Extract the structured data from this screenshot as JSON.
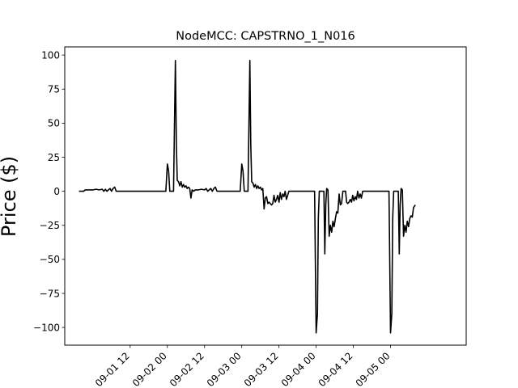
{
  "chart_data": {
    "type": "line",
    "title": "NodeMCC: CAPSTRNO_1_N016",
    "xlabel": "",
    "ylabel": "Price ($)",
    "ylim": [
      -113,
      106
    ],
    "xlim_hours": [
      -9.1,
      120.4
    ],
    "grid": false,
    "legend": "none",
    "line_color": "#000000",
    "x_ticks": [
      {
        "hour": 12,
        "label": "09-01 12"
      },
      {
        "hour": 24,
        "label": "09-02 00"
      },
      {
        "hour": 36,
        "label": "09-02 12"
      },
      {
        "hour": 48,
        "label": "09-03 00"
      },
      {
        "hour": 60,
        "label": "09-03 12"
      },
      {
        "hour": 72,
        "label": "09-04 00"
      },
      {
        "hour": 84,
        "label": "09-04 12"
      },
      {
        "hour": 96,
        "label": "09-05 00"
      }
    ],
    "y_ticks": [
      100,
      75,
      50,
      25,
      0,
      -25,
      -50,
      -75,
      -100
    ],
    "series": [
      {
        "name": "",
        "points": [
          [
            -4.5,
            0
          ],
          [
            -3,
            0
          ],
          [
            -2.5,
            1
          ],
          [
            0,
            1
          ],
          [
            1,
            1.5
          ],
          [
            2,
            1
          ],
          [
            3,
            1.5
          ],
          [
            3.5,
            0
          ],
          [
            4,
            1.5
          ],
          [
            4.5,
            0
          ],
          [
            5,
            1
          ],
          [
            5.5,
            2
          ],
          [
            6,
            0
          ],
          [
            6.5,
            2
          ],
          [
            7,
            3
          ],
          [
            7.5,
            0
          ],
          [
            8,
            0
          ],
          [
            15,
            0
          ],
          [
            23.5,
            0
          ],
          [
            24,
            20
          ],
          [
            24.4,
            15
          ],
          [
            24.8,
            0
          ],
          [
            25,
            0
          ],
          [
            26,
            0
          ],
          [
            26.6,
            96
          ],
          [
            26.9,
            35
          ],
          [
            27.2,
            8
          ],
          [
            27.6,
            7
          ],
          [
            28,
            4
          ],
          [
            28.4,
            7
          ],
          [
            28.8,
            3
          ],
          [
            29.2,
            5
          ],
          [
            29.6,
            3
          ],
          [
            30,
            4
          ],
          [
            30.4,
            2
          ],
          [
            30.8,
            3
          ],
          [
            31.2,
            2
          ],
          [
            31.6,
            -5
          ],
          [
            32,
            1
          ],
          [
            32.5,
            0
          ],
          [
            33,
            1
          ],
          [
            34,
            1
          ],
          [
            35,
            1.5
          ],
          [
            36,
            1
          ],
          [
            36.5,
            2
          ],
          [
            37,
            0
          ],
          [
            37.5,
            1
          ],
          [
            38,
            2
          ],
          [
            38.5,
            0
          ],
          [
            39,
            2
          ],
          [
            39.5,
            3
          ],
          [
            40,
            0
          ],
          [
            42,
            0
          ],
          [
            47.5,
            0
          ],
          [
            48,
            20
          ],
          [
            48.4,
            15
          ],
          [
            48.8,
            0
          ],
          [
            49.5,
            0
          ],
          [
            50,
            0
          ],
          [
            50.6,
            96
          ],
          [
            50.9,
            35
          ],
          [
            51.2,
            7
          ],
          [
            51.6,
            6
          ],
          [
            52,
            3
          ],
          [
            52.4,
            5
          ],
          [
            52.8,
            2
          ],
          [
            53.2,
            4
          ],
          [
            53.6,
            2
          ],
          [
            54,
            3
          ],
          [
            54.4,
            1
          ],
          [
            54.8,
            2
          ],
          [
            55.2,
            -13
          ],
          [
            55.6,
            -5
          ],
          [
            56,
            -4
          ],
          [
            56.4,
            -9
          ],
          [
            56.8,
            -8
          ],
          [
            57.2,
            -9
          ],
          [
            57.6,
            -10
          ],
          [
            58,
            -9
          ],
          [
            58.4,
            -3
          ],
          [
            58.8,
            -8
          ],
          [
            59.2,
            -6
          ],
          [
            59.6,
            -3
          ],
          [
            60,
            -8
          ],
          [
            60.4,
            -1
          ],
          [
            60.8,
            -6
          ],
          [
            61.2,
            -2
          ],
          [
            61.6,
            -4
          ],
          [
            62,
            0
          ],
          [
            62.4,
            -6
          ],
          [
            62.8,
            -3
          ],
          [
            63.2,
            0
          ],
          [
            65,
            0
          ],
          [
            71.5,
            0
          ],
          [
            72,
            -104
          ],
          [
            72.4,
            -90
          ],
          [
            72.7,
            -20
          ],
          [
            73,
            0
          ],
          [
            74.5,
            0
          ],
          [
            74.8,
            -46
          ],
          [
            75.1,
            -10
          ],
          [
            75.4,
            2
          ],
          [
            75.8,
            1
          ],
          [
            76.2,
            -33
          ],
          [
            76.6,
            -25
          ],
          [
            77,
            -30
          ],
          [
            77.4,
            -22
          ],
          [
            77.8,
            -26
          ],
          [
            78.2,
            -20
          ],
          [
            78.6,
            -15
          ],
          [
            79,
            -16
          ],
          [
            79.4,
            -2
          ],
          [
            79.8,
            -10
          ],
          [
            80.2,
            -9
          ],
          [
            80.6,
            0
          ],
          [
            81.5,
            0
          ],
          [
            81.8,
            -8
          ],
          [
            82.2,
            -9
          ],
          [
            82.6,
            -8
          ],
          [
            83,
            -6
          ],
          [
            83.4,
            -8
          ],
          [
            83.8,
            -3
          ],
          [
            84.2,
            -7
          ],
          [
            84.6,
            -4
          ],
          [
            85,
            -6
          ],
          [
            85.4,
            0
          ],
          [
            85.8,
            -5
          ],
          [
            86.2,
            -2
          ],
          [
            86.6,
            -5
          ],
          [
            87,
            0
          ],
          [
            89,
            0
          ],
          [
            95.5,
            0
          ],
          [
            96,
            -104
          ],
          [
            96.4,
            -90
          ],
          [
            96.7,
            -20
          ],
          [
            97,
            0
          ],
          [
            98.5,
            0
          ],
          [
            98.8,
            -46
          ],
          [
            99.1,
            -10
          ],
          [
            99.4,
            2
          ],
          [
            99.8,
            1
          ],
          [
            100.2,
            -33
          ],
          [
            100.6,
            -25
          ],
          [
            101,
            -30
          ],
          [
            101.4,
            -22
          ],
          [
            101.8,
            -26
          ],
          [
            102.2,
            -20
          ],
          [
            102.6,
            -18
          ],
          [
            103,
            -19
          ],
          [
            103.4,
            -12
          ],
          [
            104,
            -10
          ]
        ]
      }
    ]
  }
}
